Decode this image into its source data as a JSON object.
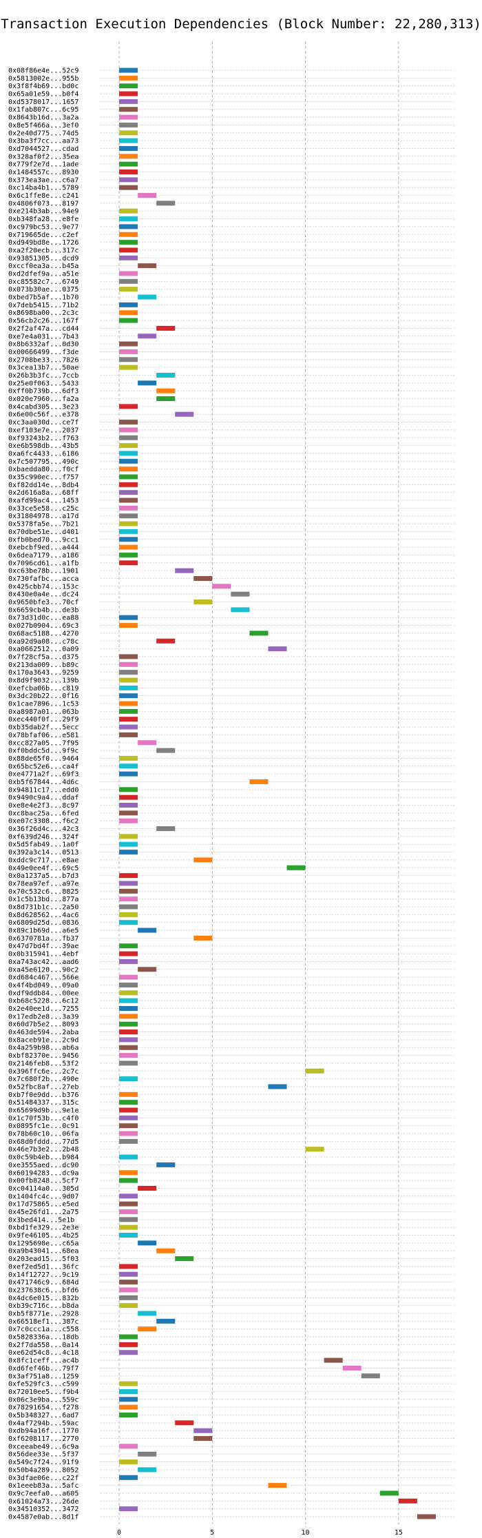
{
  "chart_data": {
    "type": "gantt",
    "title": "Transaction Execution Dependencies (Block Number: 22,280,313)",
    "xlabel": "",
    "ylabel": "",
    "xlim": [
      -1,
      18
    ],
    "x_ticks": [
      0,
      5,
      10,
      15
    ],
    "x_tick_labels": [
      "0",
      "5",
      "10",
      "15"
    ],
    "grid": true,
    "legend": "none",
    "bar_duration": 1,
    "palette": [
      "#1f77b4",
      "#ff7f0e",
      "#2ca02c",
      "#d62728",
      "#9467bd",
      "#8c564b",
      "#e377c2",
      "#7f7f7f",
      "#bcbd22",
      "#17becf"
    ],
    "transactions": [
      {
        "label": "0x08f86e4e...52c9",
        "start": 0
      },
      {
        "label": "0x5813002e...955b",
        "start": 0
      },
      {
        "label": "0x3f8f4b69...bd0c",
        "start": 0
      },
      {
        "label": "0x65a01e59...b0f4",
        "start": 0
      },
      {
        "label": "0xd5378017...1657",
        "start": 0
      },
      {
        "label": "0x1fab807c...6c95",
        "start": 0
      },
      {
        "label": "0x8643b16d...3a2a",
        "start": 0
      },
      {
        "label": "0x8e5f466a...3ef0",
        "start": 0
      },
      {
        "label": "0x2e40d775...74d5",
        "start": 0
      },
      {
        "label": "0x3ba3f7cc...aa73",
        "start": 0
      },
      {
        "label": "0xd7044527...cdad",
        "start": 0
      },
      {
        "label": "0x328af0f2...35ea",
        "start": 0
      },
      {
        "label": "0x779f2e7d...1ade",
        "start": 0
      },
      {
        "label": "0x1484557c...8930",
        "start": 0
      },
      {
        "label": "0x373ea3ae...c6a7",
        "start": 0
      },
      {
        "label": "0xc14ba4b1...5789",
        "start": 0
      },
      {
        "label": "0x6c1ffe8e...c241",
        "start": 1
      },
      {
        "label": "0x4806f073...8197",
        "start": 2
      },
      {
        "label": "0xe214b3ab...94e9",
        "start": 0
      },
      {
        "label": "0xb348fa28...e8fe",
        "start": 0
      },
      {
        "label": "0xc979bc53...9e77",
        "start": 0
      },
      {
        "label": "0x719665de...c2ef",
        "start": 0
      },
      {
        "label": "0xd949bd8e...1726",
        "start": 0
      },
      {
        "label": "0xa2f20ecb...317c",
        "start": 0
      },
      {
        "label": "0x93851305...dcd9",
        "start": 0
      },
      {
        "label": "0xccf0ea3a...b45a",
        "start": 1
      },
      {
        "label": "0xd2dfef9a...a51e",
        "start": 0
      },
      {
        "label": "0xc85582c7...6749",
        "start": 0
      },
      {
        "label": "0x073b30ae...0375",
        "start": 0
      },
      {
        "label": "0xbed7b5af...1b70",
        "start": 1
      },
      {
        "label": "0x7deb5415...71b2",
        "start": 0
      },
      {
        "label": "0x8698ba00...2c3c",
        "start": 0
      },
      {
        "label": "0x56cb2c26...167f",
        "start": 0
      },
      {
        "label": "0x2f2af47a...cd44",
        "start": 2
      },
      {
        "label": "0xe7e4a031...7b43",
        "start": 1
      },
      {
        "label": "0x8b6332af...0d30",
        "start": 0
      },
      {
        "label": "0x00666499...f3de",
        "start": 0
      },
      {
        "label": "0x2708be33...7826",
        "start": 0
      },
      {
        "label": "0x3cea13b7...50ae",
        "start": 0
      },
      {
        "label": "0x26b3b3fc...7ccb",
        "start": 2
      },
      {
        "label": "0x25e0f063...5433",
        "start": 1
      },
      {
        "label": "0xff0b739b...6df3",
        "start": 2
      },
      {
        "label": "0x020e7960...fa2a",
        "start": 2
      },
      {
        "label": "0x4cabd305...3e23",
        "start": 0
      },
      {
        "label": "0x6e00c56f...e378",
        "start": 3
      },
      {
        "label": "0xc3aa030d...ce7f",
        "start": 0
      },
      {
        "label": "0xef103e7e...2037",
        "start": 0
      },
      {
        "label": "0xf93243b2...f763",
        "start": 0
      },
      {
        "label": "0xe6b598db...43b5",
        "start": 0
      },
      {
        "label": "0xa6fc4433...6186",
        "start": 0
      },
      {
        "label": "0x7c507795...490c",
        "start": 0
      },
      {
        "label": "0xbaedda80...f0cf",
        "start": 0
      },
      {
        "label": "0x35c990ec...f757",
        "start": 0
      },
      {
        "label": "0xf82dd14e...8db4",
        "start": 0
      },
      {
        "label": "0x2d616a8a...68ff",
        "start": 0
      },
      {
        "label": "0xafd99ac4...1453",
        "start": 0
      },
      {
        "label": "0x33ce5e58...c25c",
        "start": 0
      },
      {
        "label": "0x31804978...a17d",
        "start": 0
      },
      {
        "label": "0x5378fa5e...7b21",
        "start": 0
      },
      {
        "label": "0x70dbe51e...d401",
        "start": 0
      },
      {
        "label": "0xfb0bed70...9cc1",
        "start": 0
      },
      {
        "label": "0xebcbf9ed...a444",
        "start": 0
      },
      {
        "label": "0x6dea7179...a186",
        "start": 0
      },
      {
        "label": "0x7096cd61...a1fb",
        "start": 0
      },
      {
        "label": "0xc63be78b...1901",
        "start": 3
      },
      {
        "label": "0x730fafbc...acca",
        "start": 4
      },
      {
        "label": "0x425cbb74...153c",
        "start": 5
      },
      {
        "label": "0x430e0a4e...dc24",
        "start": 6
      },
      {
        "label": "0x9650bfe3...70cf",
        "start": 4
      },
      {
        "label": "0x6659cb4b...de3b",
        "start": 6
      },
      {
        "label": "0x73d31d0c...ea88",
        "start": 0
      },
      {
        "label": "0x027b0904...69c3",
        "start": 0
      },
      {
        "label": "0x68ac5188...4270",
        "start": 7
      },
      {
        "label": "0xa92d9a08...c78c",
        "start": 2
      },
      {
        "label": "0xa0662512...0a09",
        "start": 8
      },
      {
        "label": "0x7f28cf5a...d375",
        "start": 0
      },
      {
        "label": "0x213da009...b89c",
        "start": 0
      },
      {
        "label": "0x170a3643...9259",
        "start": 0
      },
      {
        "label": "0x8d9f9032...139b",
        "start": 0
      },
      {
        "label": "0xefcba06b...c819",
        "start": 0
      },
      {
        "label": "0x3dc20b22...0f16",
        "start": 0
      },
      {
        "label": "0x1cae7896...1c53",
        "start": 0
      },
      {
        "label": "0xa8987a01...063b",
        "start": 0
      },
      {
        "label": "0xec440f0f...29f9",
        "start": 0
      },
      {
        "label": "0xb35dab2f...5ecc",
        "start": 0
      },
      {
        "label": "0x78bfaf06...e581",
        "start": 0
      },
      {
        "label": "0xcc827a05...7f95",
        "start": 1
      },
      {
        "label": "0xf0bddc5d...9f9c",
        "start": 2
      },
      {
        "label": "0x88de65f0...9464",
        "start": 0
      },
      {
        "label": "0x65bc52e6...ca4f",
        "start": 0
      },
      {
        "label": "0xe4771a2f...69f3",
        "start": 0
      },
      {
        "label": "0xb5f67844...4d6c",
        "start": 7
      },
      {
        "label": "0x94811c17...edd0",
        "start": 0
      },
      {
        "label": "0x9490c9a4...ddaf",
        "start": 0
      },
      {
        "label": "0xe8e4e2f3...8c97",
        "start": 0
      },
      {
        "label": "0xc8bac25a...6fed",
        "start": 0
      },
      {
        "label": "0xe07c3308...f6c2",
        "start": 0
      },
      {
        "label": "0x36f26d4c...42c3",
        "start": 2
      },
      {
        "label": "0xf639d246...324f",
        "start": 0
      },
      {
        "label": "0x5d5fab49...1a0f",
        "start": 0
      },
      {
        "label": "0x392a3c14...0513",
        "start": 0
      },
      {
        "label": "0xddc9c717...e8ae",
        "start": 4
      },
      {
        "label": "0x49e0ee4f...69c5",
        "start": 9
      },
      {
        "label": "0x0a1237a5...b7d3",
        "start": 0
      },
      {
        "label": "0x78ea97ef...a97e",
        "start": 0
      },
      {
        "label": "0x70c532c6...8825",
        "start": 0
      },
      {
        "label": "0x1c5b13bd...877a",
        "start": 0
      },
      {
        "label": "0x8d731b1c...2a50",
        "start": 0
      },
      {
        "label": "0x8d628562...4ac6",
        "start": 0
      },
      {
        "label": "0x6809d25d...0836",
        "start": 0
      },
      {
        "label": "0x89c1b69d...a6e5",
        "start": 1
      },
      {
        "label": "0x6370781a...fb37",
        "start": 4
      },
      {
        "label": "0x47d7bd4f...39ae",
        "start": 0
      },
      {
        "label": "0x0b315941...4ebf",
        "start": 0
      },
      {
        "label": "0xa743ac42...aad6",
        "start": 0
      },
      {
        "label": "0xa45e6120...90c2",
        "start": 1
      },
      {
        "label": "0xd684c467...566e",
        "start": 0
      },
      {
        "label": "0x4f4bd049...09a0",
        "start": 0
      },
      {
        "label": "0xdf9ddb84...00ee",
        "start": 0
      },
      {
        "label": "0xb68c5228...6c12",
        "start": 0
      },
      {
        "label": "0x2e40ee1d...7255",
        "start": 0
      },
      {
        "label": "0x17edb2e8...3a39",
        "start": 0
      },
      {
        "label": "0x60d7b5e2...8093",
        "start": 0
      },
      {
        "label": "0x463de594...2aba",
        "start": 0
      },
      {
        "label": "0x8aceb91e...2c9d",
        "start": 0
      },
      {
        "label": "0x4a259b98...ab6a",
        "start": 0
      },
      {
        "label": "0xbf82370e...9456",
        "start": 0
      },
      {
        "label": "0x2146feb8...53f2",
        "start": 0
      },
      {
        "label": "0x396ffc6e...2c7c",
        "start": 10
      },
      {
        "label": "0x7c680f2b...490e",
        "start": 0
      },
      {
        "label": "0x52fbc8af...27eb",
        "start": 8
      },
      {
        "label": "0xb7f0e9dd...b376",
        "start": 0
      },
      {
        "label": "0x51484337...315c",
        "start": 0
      },
      {
        "label": "0x65699d9b...9e1e",
        "start": 0
      },
      {
        "label": "0x1c70f53b...c4f0",
        "start": 0
      },
      {
        "label": "0x0895fc1e...0c91",
        "start": 0
      },
      {
        "label": "0x78b60c10...06fa",
        "start": 0
      },
      {
        "label": "0x68d0fddd...77d5",
        "start": 0
      },
      {
        "label": "0x46e7b3e2...2b48",
        "start": 10
      },
      {
        "label": "0x0c59b4eb...b984",
        "start": 0
      },
      {
        "label": "0xe3555aed...dc90",
        "start": 2
      },
      {
        "label": "0x60194283...dc9a",
        "start": 0
      },
      {
        "label": "0x00fb8248...5cf7",
        "start": 0
      },
      {
        "label": "0xc04114a0...305d",
        "start": 1
      },
      {
        "label": "0x1404fc4c...9d07",
        "start": 0
      },
      {
        "label": "0x17d75865...e5ed",
        "start": 0
      },
      {
        "label": "0x45e26fd1...2a75",
        "start": 0
      },
      {
        "label": "0x3bed414...5e1b",
        "start": 0
      },
      {
        "label": "0xbd1fe329...2e3e",
        "start": 0
      },
      {
        "label": "0x9fe46105...4b25",
        "start": 0
      },
      {
        "label": "0x1295698e...c65a",
        "start": 1
      },
      {
        "label": "0xa9b43041...68ea",
        "start": 2
      },
      {
        "label": "0x203ead15...5f03",
        "start": 3
      },
      {
        "label": "0xef2ed5d1...36fc",
        "start": 0
      },
      {
        "label": "0x14f12727...9c19",
        "start": 0
      },
      {
        "label": "0x471746c9...684d",
        "start": 0
      },
      {
        "label": "0x237638c6...bfd6",
        "start": 0
      },
      {
        "label": "0x4dc6e015...832b",
        "start": 0
      },
      {
        "label": "0xb39c716c...b8da",
        "start": 0
      },
      {
        "label": "0xb5f8771e...2928",
        "start": 1
      },
      {
        "label": "0x66518ef1...387c",
        "start": 2
      },
      {
        "label": "0x7c0ccc1a...c558",
        "start": 1
      },
      {
        "label": "0x5828336a...18db",
        "start": 0
      },
      {
        "label": "0x2f7da558...0a14",
        "start": 0
      },
      {
        "label": "0xe62d54c8...4c18",
        "start": 0
      },
      {
        "label": "0x8fc1ceff...ac4b",
        "start": 11
      },
      {
        "label": "0xd6fef46b...79f7",
        "start": 12
      },
      {
        "label": "0x3af751a8...1259",
        "start": 13
      },
      {
        "label": "0xfe529fc3...c599",
        "start": 0
      },
      {
        "label": "0x72010ee5...f9b4",
        "start": 0
      },
      {
        "label": "0x06c3e9ba...559c",
        "start": 0
      },
      {
        "label": "0x78291654...f278",
        "start": 0
      },
      {
        "label": "0x5b348327...6ad7",
        "start": 0
      },
      {
        "label": "0x4af7294b...59ac",
        "start": 3
      },
      {
        "label": "0xdb94a16f...1770",
        "start": 4
      },
      {
        "label": "0xf6208117...2770",
        "start": 4
      },
      {
        "label": "0xceeabe49...6c9a",
        "start": 0
      },
      {
        "label": "0x56dee33e...5f37",
        "start": 1
      },
      {
        "label": "0x549c7f24...91f9",
        "start": 0
      },
      {
        "label": "0x50b4a289...8052",
        "start": 1
      },
      {
        "label": "0x3dfae06e...c22f",
        "start": 0
      },
      {
        "label": "0x1eeeb83a...5afc",
        "start": 8
      },
      {
        "label": "0x9c7eefa0...a605",
        "start": 14
      },
      {
        "label": "0x61024a73...26de",
        "start": 15
      },
      {
        "label": "0x34510352...3472",
        "start": 0
      },
      {
        "label": "0x4587e0ab...8d1f",
        "start": 16
      }
    ]
  }
}
